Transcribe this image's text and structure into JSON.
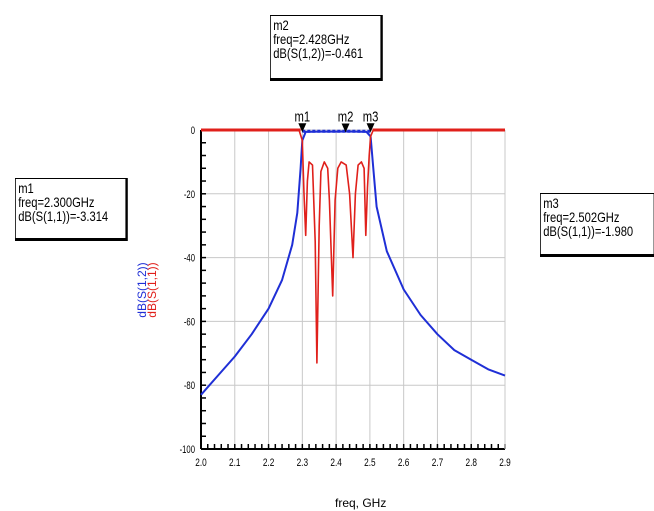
{
  "chart_data": {
    "type": "line",
    "xlabel": "freq, GHz",
    "ylabel_series": [
      "dB(S(1,2))",
      "dB(S(1,1))"
    ],
    "xlim": [
      2.0,
      2.9
    ],
    "ylim": [
      -100,
      0
    ],
    "x_ticks": [
      "2.0",
      "2.1",
      "2.2",
      "2.3",
      "2.4",
      "2.5",
      "2.6",
      "2.7",
      "2.8",
      "2.9"
    ],
    "y_ticks": [
      "0",
      "-20",
      "-40",
      "-60",
      "-80",
      "-100"
    ],
    "grid": true,
    "series": [
      {
        "name": "dB(S(1,2))",
        "color": "#1f2fd6",
        "points": [
          [
            2.0,
            -83
          ],
          [
            2.05,
            -77
          ],
          [
            2.1,
            -71
          ],
          [
            2.15,
            -64
          ],
          [
            2.2,
            -56
          ],
          [
            2.24,
            -47
          ],
          [
            2.27,
            -36
          ],
          [
            2.285,
            -26
          ],
          [
            2.295,
            -12
          ],
          [
            2.3,
            -3.3
          ],
          [
            2.31,
            -0.6
          ],
          [
            2.35,
            -0.5
          ],
          [
            2.4,
            -0.5
          ],
          [
            2.428,
            -0.461
          ],
          [
            2.46,
            -0.5
          ],
          [
            2.49,
            -0.6
          ],
          [
            2.502,
            -2
          ],
          [
            2.51,
            -12
          ],
          [
            2.52,
            -24
          ],
          [
            2.55,
            -38
          ],
          [
            2.6,
            -50
          ],
          [
            2.65,
            -58
          ],
          [
            2.7,
            -64
          ],
          [
            2.75,
            -69
          ],
          [
            2.8,
            -72
          ],
          [
            2.85,
            -75
          ],
          [
            2.9,
            -77
          ]
        ]
      },
      {
        "name": "dB(S(1,1))",
        "color": "#e0201b",
        "points": [
          [
            2.0,
            0
          ],
          [
            2.29,
            0
          ],
          [
            2.3,
            -3.3
          ],
          [
            2.305,
            -20
          ],
          [
            2.31,
            -33
          ],
          [
            2.315,
            -16
          ],
          [
            2.32,
            -10
          ],
          [
            2.33,
            -11
          ],
          [
            2.338,
            -35
          ],
          [
            2.343,
            -73
          ],
          [
            2.35,
            -30
          ],
          [
            2.355,
            -13
          ],
          [
            2.365,
            -10
          ],
          [
            2.375,
            -12
          ],
          [
            2.38,
            -22
          ],
          [
            2.39,
            -52
          ],
          [
            2.397,
            -22
          ],
          [
            2.405,
            -12
          ],
          [
            2.415,
            -10
          ],
          [
            2.43,
            -11
          ],
          [
            2.44,
            -20
          ],
          [
            2.45,
            -40
          ],
          [
            2.457,
            -20
          ],
          [
            2.465,
            -11
          ],
          [
            2.475,
            -10
          ],
          [
            2.483,
            -12
          ],
          [
            2.488,
            -33
          ],
          [
            2.493,
            -18
          ],
          [
            2.498,
            -8
          ],
          [
            2.502,
            -2
          ],
          [
            2.51,
            0
          ],
          [
            2.9,
            0
          ]
        ]
      }
    ],
    "markers": [
      {
        "id": "m1",
        "label": "m1",
        "freq": "freq=2.300GHz",
        "value": "dB(S(1,1))=-3.314",
        "x": 2.3,
        "y": -0.4
      },
      {
        "id": "m2",
        "label": "m2",
        "freq": "freq=2.428GHz",
        "value": "dB(S(1,2))=-0.461",
        "x": 2.428,
        "y": -0.461
      },
      {
        "id": "m3",
        "label": "m3",
        "freq": "freq=2.502GHz",
        "value": "dB(S(1,1))=-1.980",
        "x": 2.502,
        "y": -0.4
      }
    ]
  }
}
